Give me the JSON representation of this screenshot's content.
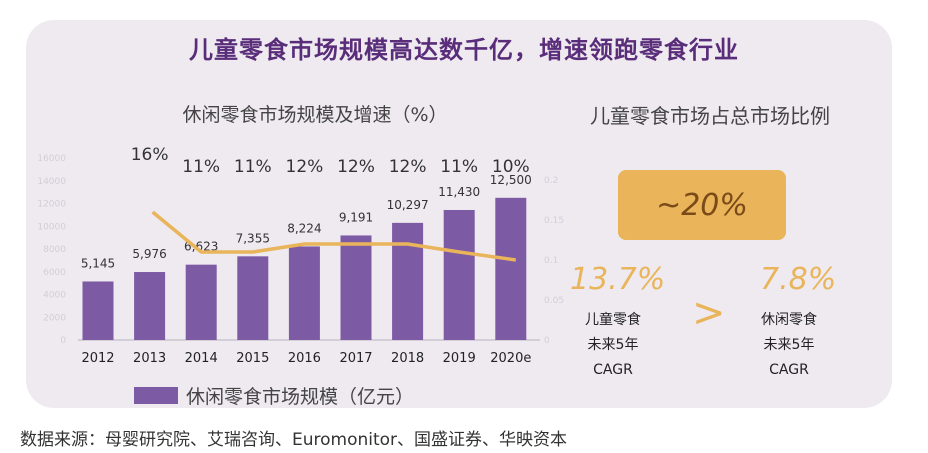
{
  "title": "儿童零食市场规模高达数千亿，增速领跑零食行业",
  "chart_data": {
    "type": "bar",
    "title": "休闲零食市场规模及增速（%）",
    "categories": [
      "2012",
      "2013",
      "2014",
      "2015",
      "2016",
      "2017",
      "2018",
      "2019",
      "2020e"
    ],
    "series": [
      {
        "name": "休闲零食市场规模（亿元）",
        "type": "bar",
        "values": [
          5145,
          5976,
          6623,
          7355,
          8224,
          9191,
          10297,
          11430,
          12500
        ],
        "labels": [
          "5,145",
          "5,976",
          "6,623",
          "7,355",
          "8,224",
          "9,191",
          "10,297",
          "11,430",
          "12,500"
        ]
      },
      {
        "type": "line",
        "x": [
          "2013",
          "2014",
          "2015",
          "2016",
          "2017",
          "2018",
          "2019",
          "2020e"
        ],
        "values": [
          16,
          11,
          11,
          12,
          12,
          12,
          11,
          10
        ],
        "labels": [
          "16%",
          "11%",
          "11%",
          "12%",
          "12%",
          "12%",
          "11%",
          "10%"
        ]
      }
    ],
    "ylim": [
      0,
      16000
    ],
    "y_ticks": [
      "0",
      "2000",
      "4000",
      "6000",
      "8000",
      "10000",
      "12000",
      "14000",
      "16000"
    ],
    "y2_ticks": [
      "0.2",
      "0.15",
      "0.1",
      "0.05",
      "0"
    ],
    "legend": "bottom-left",
    "colors": {
      "bar": "#7d5aa4",
      "line": "#e9b45a"
    }
  },
  "right_panel": {
    "title": "儿童零食市场占总市场比例",
    "ratio": "~20%",
    "left_cagr": {
      "value": "13.7%",
      "label": "儿童零食\n未来5年\nCAGR"
    },
    "comparator": ">",
    "right_cagr": {
      "value": "7.8%",
      "label": "休闲零食\n未来5年\nCAGR"
    }
  },
  "source": "数据来源：母婴研究院、艾瑞咨询、Euromonitor、国盛证券、华映资本"
}
